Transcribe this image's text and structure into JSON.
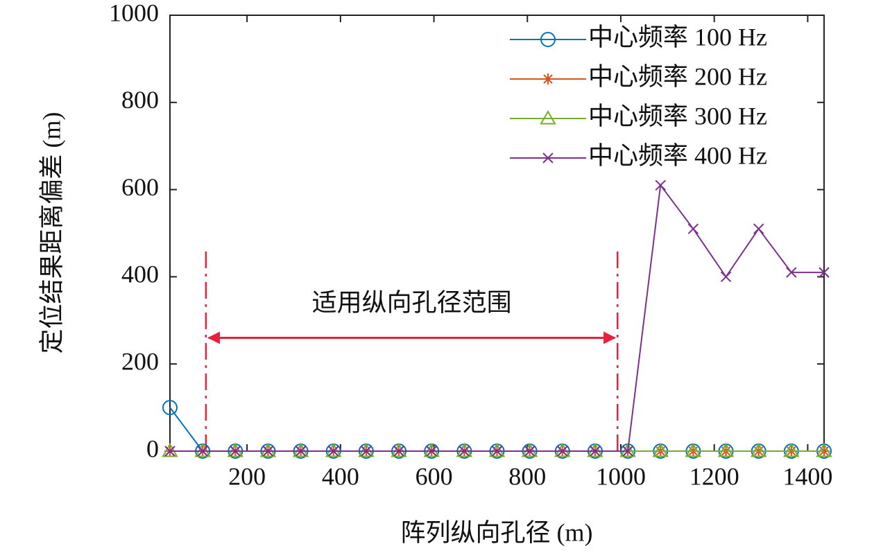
{
  "chart_data": {
    "type": "line",
    "x_label": "阵列纵向孔径 (m)",
    "y_label": "定位结果距离偏差 (m)",
    "x": [
      35,
      105,
      175,
      245,
      315,
      385,
      455,
      525,
      595,
      665,
      735,
      805,
      875,
      945,
      1015,
      1085,
      1155,
      1225,
      1295,
      1365,
      1435
    ],
    "series": [
      {
        "name": "中心频率 100 Hz",
        "color": "#0072bd",
        "marker": "o",
        "values": [
          100,
          0,
          0,
          0,
          0,
          0,
          0,
          0,
          0,
          0,
          0,
          0,
          0,
          0,
          0,
          0,
          0,
          0,
          0,
          0,
          0
        ]
      },
      {
        "name": "中心频率 200 Hz",
        "color": "#d95319",
        "marker": "*",
        "values": [
          0,
          0,
          0,
          0,
          0,
          0,
          0,
          0,
          0,
          0,
          0,
          0,
          0,
          0,
          0,
          0,
          0,
          0,
          0,
          0,
          0
        ]
      },
      {
        "name": "中心频率 300 Hz",
        "color": "#77ac30",
        "marker": "^",
        "values": [
          0,
          0,
          0,
          0,
          0,
          0,
          0,
          0,
          0,
          0,
          0,
          0,
          0,
          0,
          0,
          0,
          0,
          0,
          0,
          0,
          0
        ]
      },
      {
        "name": "中心频率 400 Hz",
        "color": "#7e2f8e",
        "marker": "x",
        "values": [
          0,
          0,
          0,
          0,
          0,
          0,
          0,
          0,
          0,
          0,
          0,
          0,
          0,
          0,
          0,
          610,
          510,
          400,
          510,
          410,
          410
        ]
      }
    ],
    "xlim": [
      35,
      1435
    ],
    "xticks": [
      200,
      400,
      600,
      800,
      1000,
      1200,
      1400
    ],
    "ylim": [
      0,
      1000
    ],
    "yticks": [
      0,
      200,
      400,
      600,
      800,
      1000
    ],
    "legend": "upper-right",
    "annotation": {
      "text": "适用纵向孔径范围",
      "x_start": 112,
      "x_end": 993,
      "y_top": 470,
      "arrow_y": 260,
      "color": "#e8203a"
    }
  }
}
